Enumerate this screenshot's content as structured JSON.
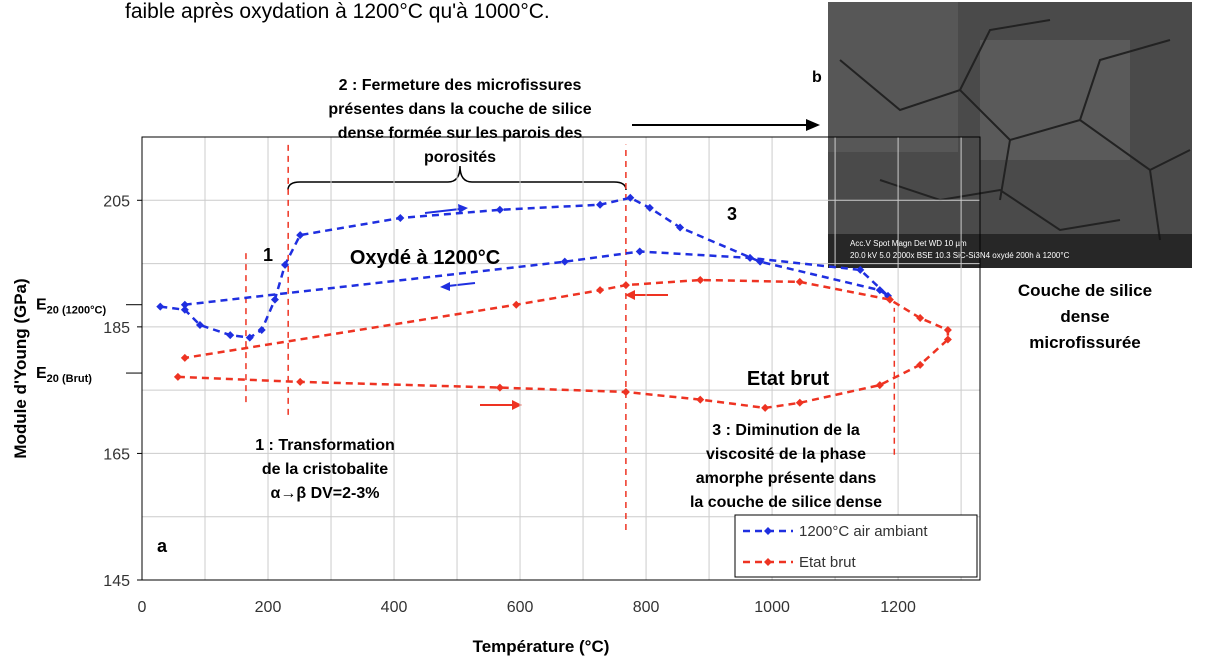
{
  "top_text": "faible après oxydation à 1200°C qu'à 1000°C.",
  "chart_data": {
    "type": "line",
    "x_label": "Température (°C)",
    "y_label": "Module d'Young (GPa)",
    "xlim": [
      0,
      1330
    ],
    "ylim": [
      145,
      215
    ],
    "xticks": [
      0,
      200,
      400,
      600,
      800,
      1000,
      1200
    ],
    "yticks": [
      145,
      165,
      185,
      205
    ],
    "xgrid": [
      100,
      300,
      500,
      700,
      900,
      1100,
      1300
    ],
    "ygrid": [
      155,
      175,
      195
    ],
    "grid": true,
    "legend": "lower right",
    "series": [
      {
        "name": "1200°C air ambiant",
        "color": "#1f2fe0",
        "x": [
          29,
          68,
          92,
          140,
          171,
          190,
          211,
          227,
          251,
          410,
          568,
          727,
          775,
          806,
          854,
          981,
          1171,
          1184,
          1140,
          965,
          790,
          671,
          68
        ],
        "values": [
          188.2,
          187.7,
          185.3,
          183.7,
          183.3,
          184.5,
          189.3,
          194.8,
          199.5,
          202.2,
          203.5,
          204.3,
          205.4,
          203.8,
          200.7,
          195.3,
          190.8,
          189.9,
          194,
          195.9,
          196.9,
          195.3,
          188.5
        ]
      },
      {
        "name": "Etat brut",
        "color": "#ee3322",
        "x": [
          57,
          251,
          568,
          768,
          886,
          989,
          1044,
          1171,
          1235,
          1279,
          1279,
          1235,
          1187,
          1044,
          886,
          768,
          727,
          594,
          68
        ],
        "values": [
          177.1,
          176.3,
          175.4,
          174.7,
          173.5,
          172.2,
          173,
          175.8,
          179,
          183,
          184.5,
          186.4,
          189.3,
          192.1,
          192.4,
          191.6,
          190.8,
          188.5,
          180.1
        ]
      }
    ],
    "reference_labels": [
      {
        "value": 188.5,
        "label": "E",
        "sub": "20 (1200°C)"
      },
      {
        "value": 177.7,
        "label": "E",
        "sub": "20 (Brut)"
      }
    ],
    "reference_lines": [
      {
        "x": 165,
        "y": [
          173.1,
          196.7
        ]
      },
      {
        "x": 232,
        "y": [
          171.1,
          213.8
        ]
      },
      {
        "x": 768,
        "y": [
          152.9,
          213.8
        ]
      },
      {
        "x": 1194,
        "y": [
          164.8,
          188.0
        ]
      }
    ],
    "annotations": [
      {
        "lines": [
          "2 : Fermeture des microfissures",
          "présentes dans la couche de silice",
          "dense formée sur les parois des",
          "porosités"
        ]
      },
      {
        "lines": [
          "1 : Transformation",
          "de la cristobalite",
          "α→β DV=2-3%"
        ]
      },
      {
        "lines": [
          "3 : Diminution de la",
          "viscosité de la phase",
          "amorphe présente dans",
          "la couche de silice dense"
        ]
      },
      {
        "lines": [
          "1"
        ]
      },
      {
        "lines": [
          "3"
        ]
      },
      {
        "lines": [
          "Oxydé à 1200°C"
        ]
      },
      {
        "lines": [
          "Etat brut"
        ]
      },
      {
        "lines": [
          "a"
        ]
      }
    ]
  },
  "inset": {
    "label": "b",
    "scale_line1": "Acc.V  Spot Magn   Det  WD              10 µm",
    "scale_line2": "20.0 kV 5.0  2000x   BSE 10.3  SiC-Si3N4 oxydé 200h à 1200°C",
    "caption": [
      "Couche de silice",
      "dense",
      "microfissurée"
    ]
  }
}
